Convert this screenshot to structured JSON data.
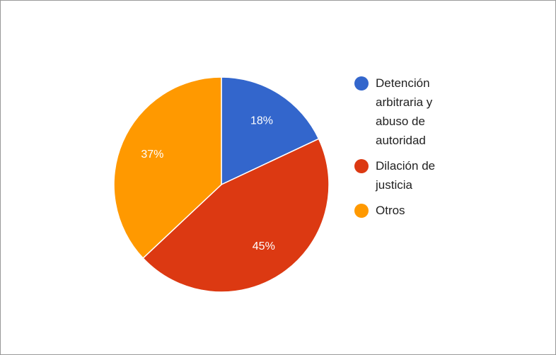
{
  "chart_data": {
    "type": "pie",
    "categories": [
      "Detención arbitraria y abuso de autoridad",
      "Dilación de justicia",
      "Otros"
    ],
    "values": [
      18,
      45,
      37
    ],
    "value_labels": [
      "18%",
      "45%",
      "37%"
    ],
    "colors": [
      "#3366cc",
      "#dc3912",
      "#ff9900"
    ],
    "legend": "right"
  }
}
